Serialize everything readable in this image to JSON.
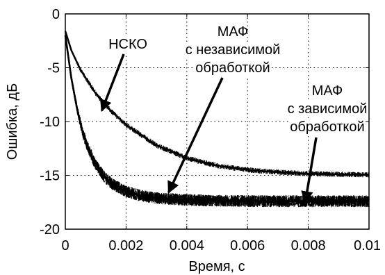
{
  "chart_data": {
    "type": "line",
    "title": "",
    "xlabel": "Время, с",
    "ylabel": "Ошибка, дБ",
    "xlim": [
      0,
      0.01
    ],
    "ylim": [
      -20,
      0
    ],
    "grid": true,
    "x_ticks": [
      0,
      0.002,
      0.004,
      0.006,
      0.008,
      0.01
    ],
    "x_tick_labels": [
      "0",
      "0.002",
      "0.004",
      "0.006",
      "0.008",
      "0.01"
    ],
    "y_ticks": [
      0,
      -5,
      -10,
      -15,
      -20
    ],
    "y_tick_labels": [
      "0",
      "-5",
      "-10",
      "-15",
      "-20"
    ],
    "series": [
      {
        "name": "НСКО",
        "x": [
          0,
          0.0002,
          0.0005,
          0.001,
          0.0015,
          0.002,
          0.003,
          0.004,
          0.005,
          0.006,
          0.007,
          0.008,
          0.009,
          0.01
        ],
        "values": [
          -1.6,
          -3.4,
          -5.2,
          -7.4,
          -9.0,
          -10.3,
          -12.2,
          -13.4,
          -14.1,
          -14.5,
          -14.7,
          -14.85,
          -14.9,
          -14.95
        ],
        "band": 0.5
      },
      {
        "name": "МАФ с независимой обработкой",
        "x": [
          0,
          0.0002,
          0.0004,
          0.0006,
          0.0008,
          0.001,
          0.0013,
          0.0016,
          0.002,
          0.0025,
          0.003,
          0.004,
          0.005,
          0.006,
          0.007,
          0.008,
          0.009,
          0.01
        ],
        "values": [
          -2.0,
          -6.0,
          -9.0,
          -11.3,
          -12.8,
          -14.0,
          -15.2,
          -15.9,
          -16.5,
          -16.9,
          -17.1,
          -17.3,
          -17.35,
          -17.4,
          -17.4,
          -17.4,
          -17.4,
          -17.4
        ],
        "band": 1.1
      },
      {
        "name": "МАФ с зависимой обработкой",
        "x": [
          0,
          0.0002,
          0.0004,
          0.0006,
          0.0008,
          0.001,
          0.0013,
          0.0016,
          0.002,
          0.0025,
          0.003,
          0.004,
          0.005,
          0.006,
          0.007,
          0.008,
          0.009,
          0.01
        ],
        "values": [
          -2.0,
          -6.0,
          -9.0,
          -11.3,
          -12.8,
          -14.0,
          -15.2,
          -15.9,
          -16.5,
          -16.9,
          -17.1,
          -17.3,
          -17.35,
          -17.4,
          -17.4,
          -17.4,
          -17.4,
          -17.4
        ],
        "band": 1.1
      }
    ],
    "annotations": [
      {
        "lines": [
          "НСКО"
        ],
        "arrow_to": [
          0.0012,
          -9.0
        ]
      },
      {
        "lines": [
          "МАФ",
          "с независимой",
          "обработкой"
        ],
        "arrow_to": [
          0.0034,
          -16.6
        ]
      },
      {
        "lines": [
          "МАФ",
          "с зависимой",
          "обработкой"
        ],
        "arrow_to": [
          0.0079,
          -17.5
        ]
      }
    ]
  }
}
